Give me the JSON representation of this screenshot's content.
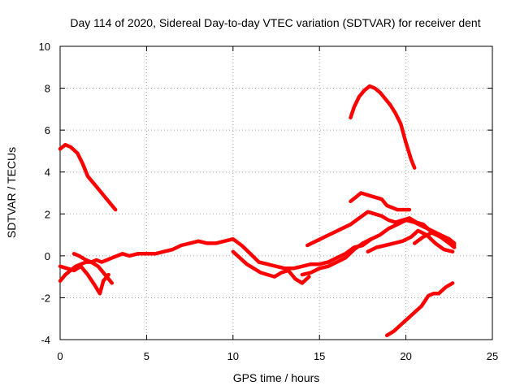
{
  "chart_data": {
    "type": "line",
    "title": "Day 114 of 2020, Sidereal Day-to-day VTEC variation (SDTVAR) for receiver dent",
    "xlabel": "GPS time / hours",
    "ylabel": "SDTVAR / TECUs",
    "xlim": [
      0,
      25
    ],
    "ylim": [
      -4,
      10
    ],
    "xticks": [
      0,
      5,
      10,
      15,
      20,
      25
    ],
    "yticks": [
      -4,
      -2,
      0,
      2,
      4,
      6,
      8,
      10
    ],
    "grid": true,
    "color": "#ff0000",
    "series": [
      {
        "name": "s1",
        "x": [
          0,
          0.3,
          0.6,
          1.0,
          1.3,
          1.6,
          2.0,
          2.4,
          2.8,
          3.2
        ],
        "y": [
          5.1,
          5.3,
          5.2,
          4.9,
          4.4,
          3.8,
          3.4,
          3.0,
          2.6,
          2.2
        ]
      },
      {
        "name": "s2",
        "x": [
          16.8,
          17.0,
          17.3,
          17.6,
          17.9,
          18.2,
          18.5,
          18.8,
          19.1,
          19.4,
          19.7,
          20.0,
          20.3,
          20.5
        ],
        "y": [
          6.6,
          7.1,
          7.6,
          7.9,
          8.1,
          8.0,
          7.8,
          7.5,
          7.2,
          6.8,
          6.3,
          5.4,
          4.6,
          4.2
        ]
      },
      {
        "name": "s3",
        "x": [
          16.8,
          17.1,
          17.4,
          17.8,
          18.2,
          18.6,
          18.9,
          19.2,
          19.5,
          19.8,
          20.2
        ],
        "y": [
          2.6,
          2.8,
          3.0,
          2.9,
          2.8,
          2.7,
          2.4,
          2.3,
          2.2,
          2.2,
          2.2
        ]
      },
      {
        "name": "s4",
        "x": [
          0,
          0.3,
          0.6,
          0.9,
          1.2,
          1.5,
          1.8,
          2.1,
          2.4,
          2.7,
          3.0,
          3.3,
          3.6,
          4.0,
          4.5,
          5.0,
          5.5,
          6.0,
          6.5,
          7.0,
          7.5,
          8.0,
          8.5,
          9.0,
          9.5,
          10.0,
          10.5,
          11.0,
          11.5,
          12.0,
          12.5,
          13.0,
          13.5,
          14.0,
          14.5,
          15.0,
          15.5,
          16.0,
          16.5,
          17.0,
          17.5,
          18.0,
          18.5,
          19.0,
          19.5,
          20.0,
          20.5,
          21.0,
          21.5,
          22.0,
          22.5,
          22.8
        ],
        "y": [
          -1.2,
          -0.9,
          -0.7,
          -0.5,
          -0.4,
          -0.3,
          -0.3,
          -0.2,
          -0.3,
          -0.2,
          -0.1,
          0.0,
          0.1,
          0.0,
          0.1,
          0.1,
          0.1,
          0.2,
          0.3,
          0.5,
          0.6,
          0.7,
          0.6,
          0.6,
          0.7,
          0.8,
          0.5,
          0.1,
          -0.3,
          -0.4,
          -0.5,
          -0.6,
          -0.6,
          -0.5,
          -0.4,
          -0.4,
          -0.3,
          -0.1,
          0.1,
          0.4,
          0.5,
          0.8,
          1.0,
          1.3,
          1.5,
          1.7,
          1.6,
          1.4,
          1.2,
          1.0,
          0.8,
          0.6
        ]
      },
      {
        "name": "s5",
        "x": [
          0,
          0.4,
          0.8,
          1.2,
          1.6,
          2.0,
          2.3,
          2.5,
          2.8
        ],
        "y": [
          -0.5,
          -0.6,
          -0.7,
          -0.5,
          -0.9,
          -1.4,
          -1.8,
          -1.2,
          -0.9
        ]
      },
      {
        "name": "s6",
        "x": [
          0.8,
          1.1,
          1.5,
          1.8,
          2.2,
          2.6,
          3.0
        ],
        "y": [
          0.1,
          0.0,
          -0.2,
          -0.3,
          -0.5,
          -0.9,
          -1.3
        ]
      },
      {
        "name": "s7",
        "x": [
          10.0,
          10.4,
          10.8,
          11.2,
          11.6,
          12.0,
          12.4,
          12.8,
          13.2,
          13.6,
          14.0,
          14.4
        ],
        "y": [
          0.2,
          -0.1,
          -0.4,
          -0.6,
          -0.8,
          -0.9,
          -1.0,
          -0.8,
          -0.7,
          -1.1,
          -1.3,
          -1.0
        ]
      },
      {
        "name": "s8",
        "x": [
          14.3,
          14.8,
          15.3,
          15.8,
          16.3,
          16.8,
          17.3,
          17.8,
          18.2,
          18.6,
          19.0,
          19.4,
          19.8,
          20.2,
          20.6,
          21.0,
          21.4,
          21.8,
          22.2,
          22.6,
          22.8
        ],
        "y": [
          0.5,
          0.7,
          0.9,
          1.1,
          1.3,
          1.5,
          1.8,
          2.1,
          2.0,
          1.9,
          1.7,
          1.6,
          1.7,
          1.8,
          1.6,
          1.5,
          1.2,
          1.0,
          0.8,
          0.6,
          0.5
        ]
      },
      {
        "name": "s9",
        "x": [
          14.0,
          14.5,
          15.0,
          15.5,
          16.0,
          16.5,
          17.0,
          17.5,
          18.0
        ],
        "y": [
          -0.9,
          -0.8,
          -0.6,
          -0.5,
          -0.3,
          -0.1,
          0.3,
          0.6,
          0.8
        ]
      },
      {
        "name": "s10",
        "x": [
          17.8,
          18.3,
          18.8,
          19.3,
          19.8,
          20.3,
          20.7,
          21.2,
          21.7,
          22.2,
          22.7
        ],
        "y": [
          0.2,
          0.4,
          0.5,
          0.6,
          0.7,
          0.9,
          1.2,
          1.0,
          0.6,
          0.3,
          0.2
        ]
      },
      {
        "name": "s11",
        "x": [
          20.5,
          21.0,
          21.5,
          22.0,
          22.5,
          22.8
        ],
        "y": [
          0.6,
          0.9,
          1.1,
          0.9,
          0.6,
          0.4
        ]
      },
      {
        "name": "s12",
        "x": [
          18.9,
          19.3,
          19.7,
          20.1,
          20.5,
          20.9,
          21.3,
          21.6,
          21.9,
          22.3,
          22.7
        ],
        "y": [
          -3.8,
          -3.6,
          -3.3,
          -3.0,
          -2.7,
          -2.4,
          -1.9,
          -1.8,
          -1.8,
          -1.5,
          -1.3
        ]
      }
    ]
  }
}
